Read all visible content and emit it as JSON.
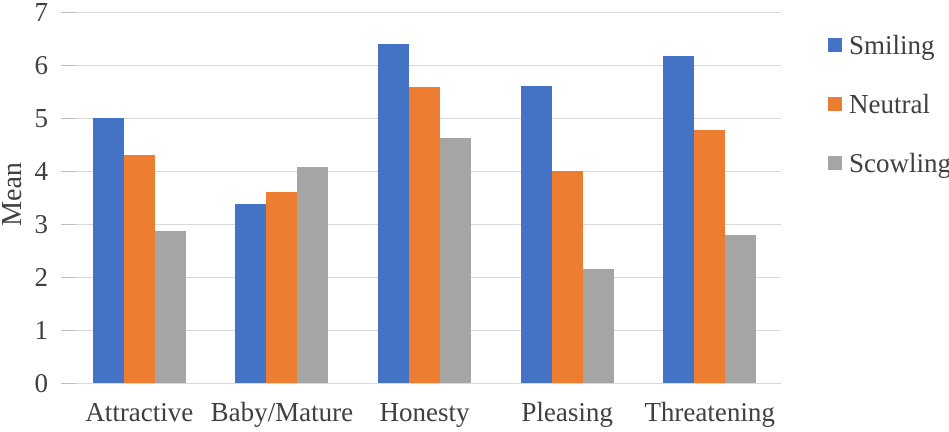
{
  "chart_data": {
    "type": "bar",
    "title": "",
    "xlabel": "",
    "ylabel": "Mean",
    "ylim": [
      0,
      7
    ],
    "ytick_step": 1,
    "grid": true,
    "legend_position": "right",
    "categories": [
      "Attractive",
      "Baby/Mature",
      "Honesty",
      "Pleasing",
      "Threatening"
    ],
    "series": [
      {
        "name": "Smiling",
        "color": "#4472C4",
        "values": [
          5.0,
          3.37,
          6.4,
          5.6,
          6.17
        ]
      },
      {
        "name": "Neutral",
        "color": "#ED7D31",
        "values": [
          4.3,
          3.6,
          5.58,
          4.0,
          4.78
        ]
      },
      {
        "name": "Scowling",
        "color": "#A5A5A5",
        "values": [
          2.87,
          4.07,
          4.62,
          2.15,
          2.8
        ]
      }
    ]
  },
  "style": {
    "gridline_color": "#D9D9D9",
    "tick_color": "#BFBFBF",
    "text_color": "#404040",
    "background_color": "#FFFFFF"
  }
}
